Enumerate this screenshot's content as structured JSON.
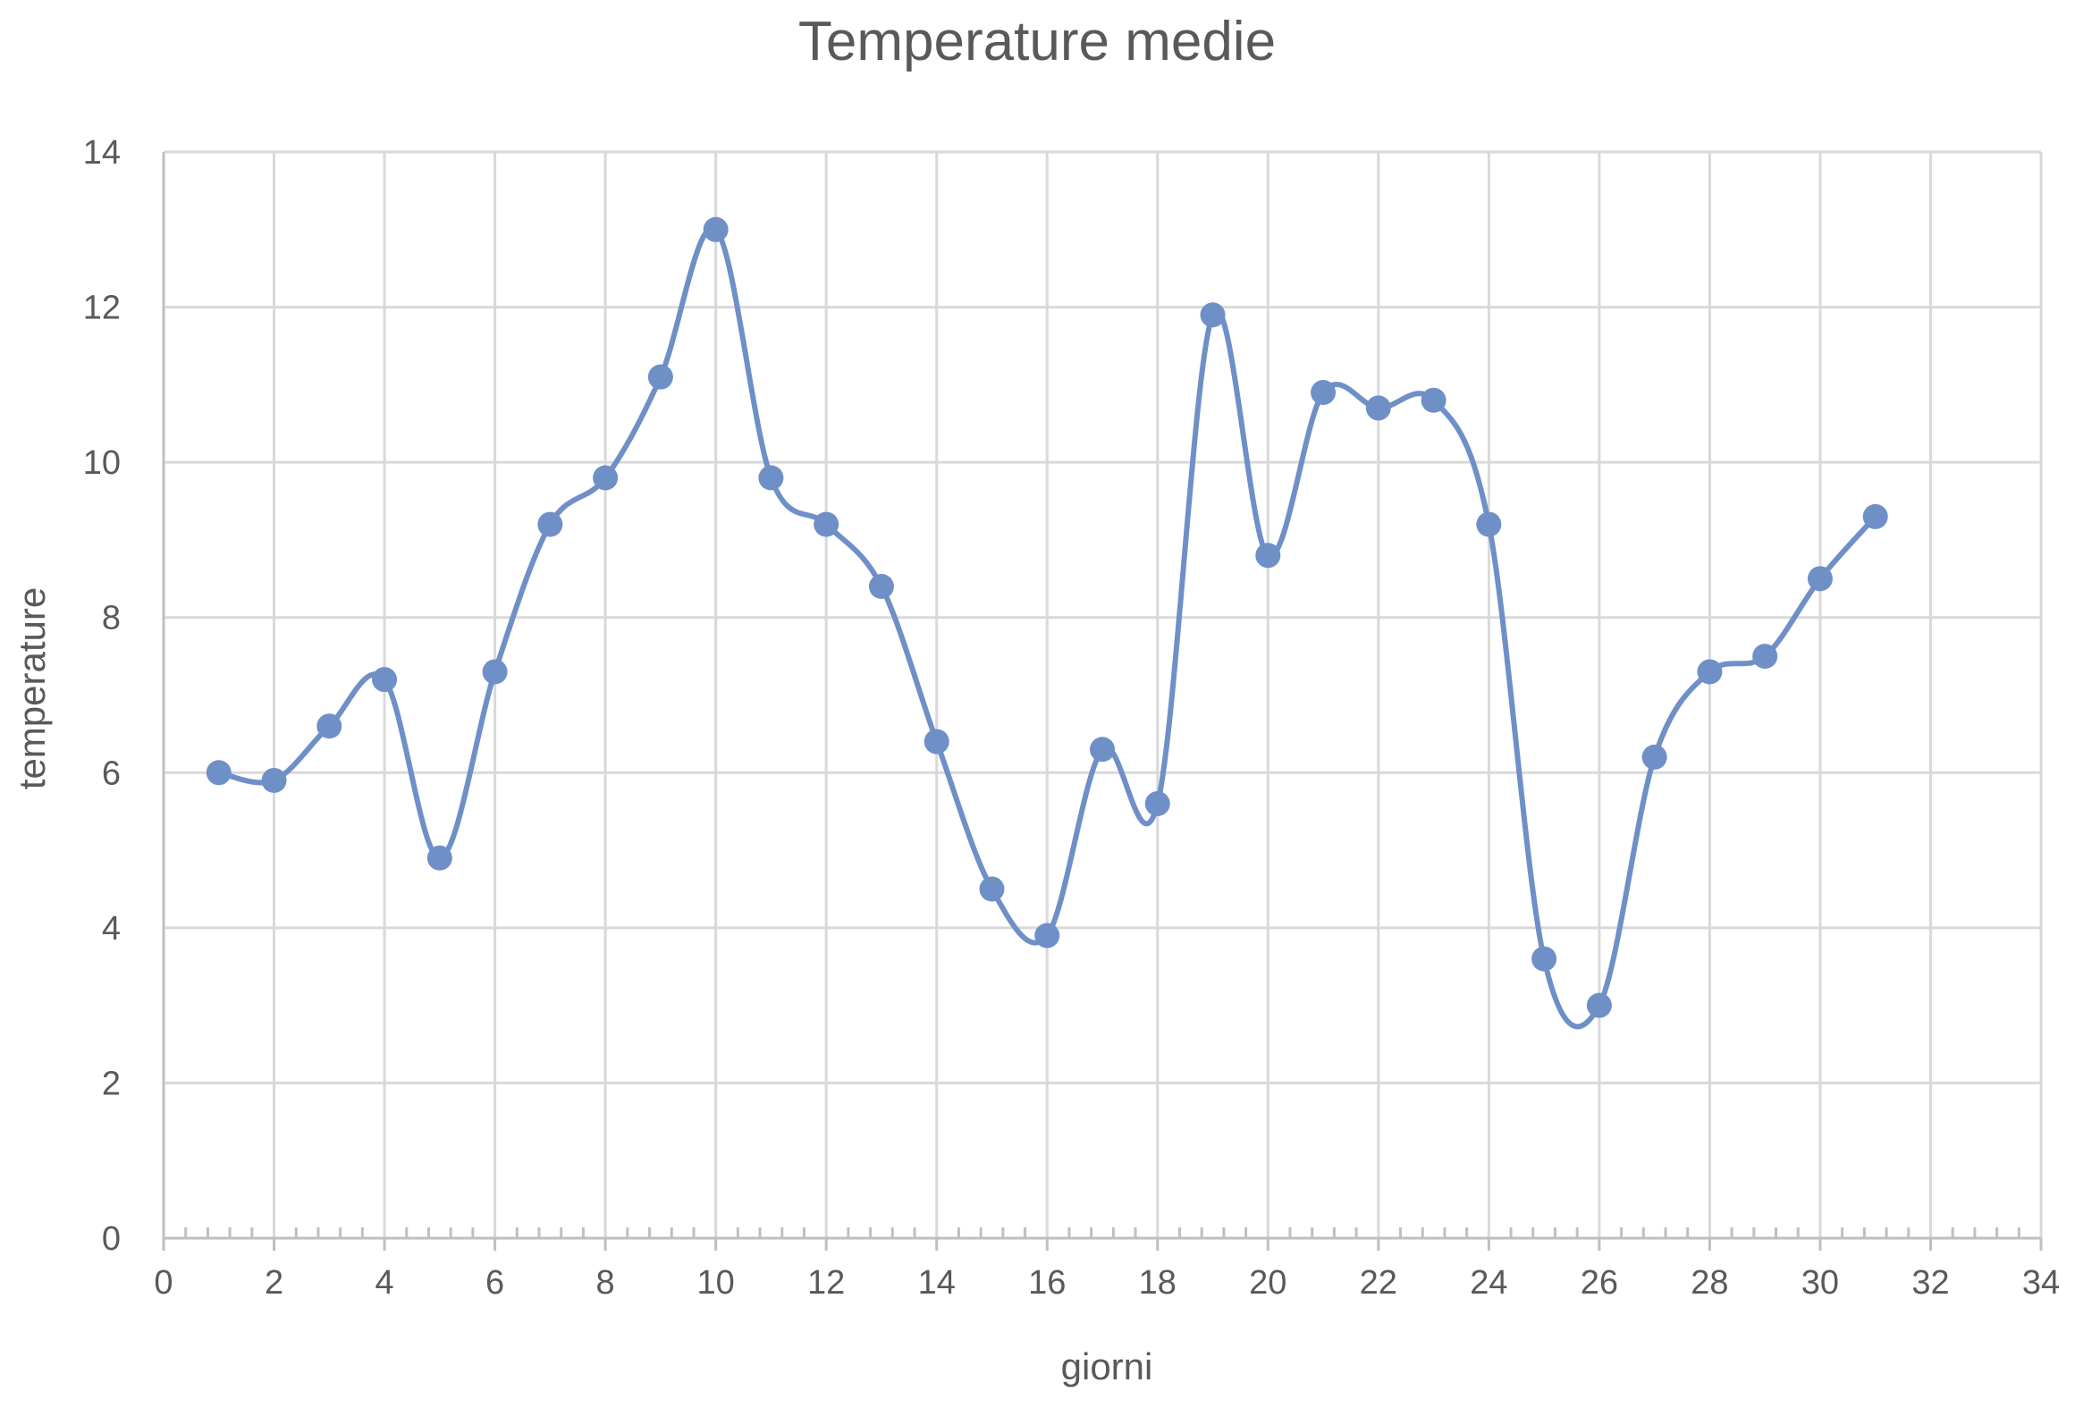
{
  "chart_data": {
    "type": "scatter",
    "title": "Temperature medie",
    "xlabel": "giorni",
    "ylabel": "temperature",
    "xlim": [
      0,
      34
    ],
    "ylim": [
      0,
      14
    ],
    "x_ticks": [
      0,
      2,
      4,
      6,
      8,
      10,
      12,
      14,
      16,
      18,
      20,
      22,
      24,
      26,
      28,
      30,
      32,
      34
    ],
    "y_ticks": [
      0,
      2,
      4,
      6,
      8,
      10,
      12,
      14
    ],
    "grid": true,
    "legend": "none",
    "line_style": "smooth",
    "series": [
      {
        "color": "#6f8fc7",
        "x": [
          1,
          2,
          3,
          4,
          5,
          6,
          7,
          8,
          9,
          10,
          11,
          12,
          13,
          14,
          15,
          16,
          17,
          18,
          19,
          20,
          21,
          22,
          23,
          24,
          25,
          26,
          27,
          28,
          29,
          30,
          31
        ],
        "y": [
          6.0,
          5.9,
          6.6,
          7.2,
          4.9,
          7.3,
          9.2,
          9.8,
          11.1,
          13.0,
          9.8,
          9.2,
          8.4,
          6.4,
          4.5,
          3.9,
          6.3,
          5.6,
          11.9,
          8.8,
          10.9,
          10.7,
          10.8,
          9.2,
          3.6,
          3.0,
          6.2,
          7.3,
          7.5,
          8.5,
          9.3
        ]
      }
    ]
  }
}
